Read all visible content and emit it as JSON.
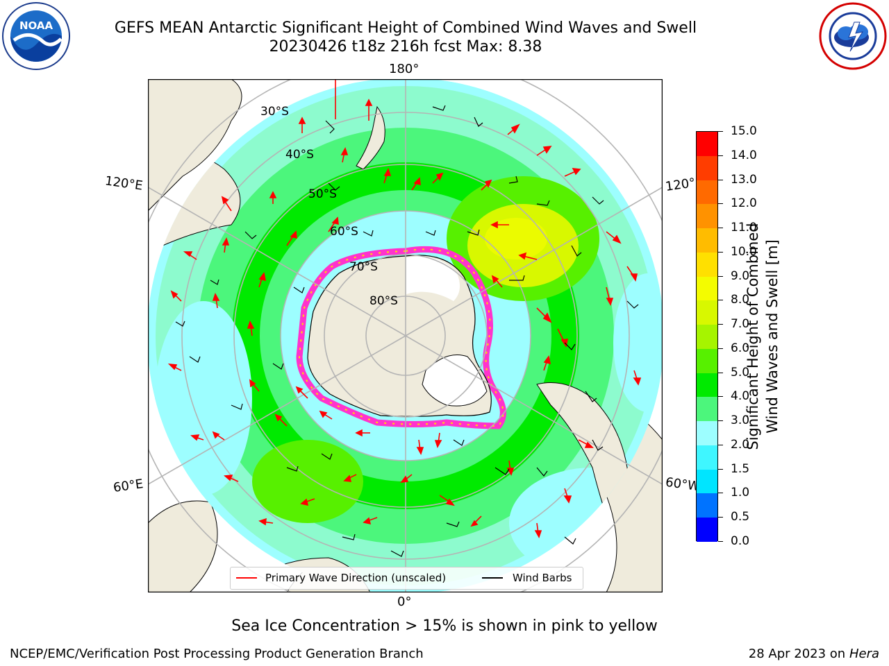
{
  "title": {
    "line1": "GEFS MEAN Antarctic Significant Height of Combined Wind Waves and Swell",
    "line2": "20230426 t18z 216h fcst   Max: 8.38"
  },
  "logos": {
    "noaa": {
      "text": "NOAA",
      "ring_text": "NATIONAL OCEANIC AND ATMOSPHERIC ADMINISTRATION · U.S. DEPARTMENT OF COMMERCE"
    },
    "nws": {
      "ring_text": "NATIONAL WEATHER SERVICE"
    }
  },
  "map": {
    "projection": "south-polar-stereographic",
    "longitude_labels": {
      "top": "180°",
      "bottom": "0°",
      "upper_left": "120°E",
      "lower_left": "60°E",
      "upper_right": "120°",
      "lower_right": "60°W"
    },
    "latitude_labels": [
      "30°S",
      "40°S",
      "50°S",
      "60°S",
      "70°S",
      "80°S"
    ],
    "colors": {
      "land": "#efebdc",
      "ice_land": "#ffffff",
      "sea_ice": "#ff33cc",
      "wave_arrow": "#ff0000",
      "wind_barb": "#000000",
      "grid": "#b4b4b4"
    }
  },
  "legend": {
    "items": [
      {
        "label": "Primary Wave Direction (unscaled)",
        "color": "#ff0000"
      },
      {
        "label": "Wind Barbs",
        "color": "#000000"
      }
    ]
  },
  "colorbar": {
    "label_line1": "Significant Height of Combined",
    "label_line2": "Wind Waves and Swell [m]",
    "ticks": [
      "0.0",
      "0.5",
      "1.0",
      "1.5",
      "2.0",
      "3.0",
      "4.0",
      "5.0",
      "6.0",
      "7.0",
      "8.0",
      "9.0",
      "10.0",
      "11.0",
      "12.0",
      "13.0",
      "14.0",
      "15.0"
    ],
    "colors": [
      "#0000ff",
      "#0073ff",
      "#00e5ff",
      "#3ff6ff",
      "#9dfeff",
      "#4cf67c",
      "#00ea00",
      "#57f000",
      "#a6f400",
      "#d8f800",
      "#f4fc00",
      "#ffe000",
      "#ffbc00",
      "#ff9200",
      "#ff6a00",
      "#ff3d00",
      "#ff0000"
    ]
  },
  "caption": "Sea Ice Concentration > 15% is shown in pink to yellow",
  "footer": {
    "left": "NCEP/EMC/Verification Post Processing Product Generation Branch",
    "right_date": "28 Apr 2023 on ",
    "right_host": "Hera"
  }
}
